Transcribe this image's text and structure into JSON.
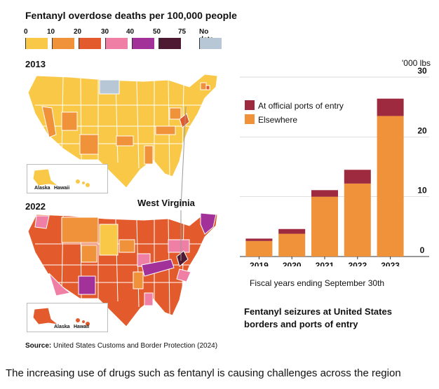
{
  "map": {
    "title": "Fentanyl overdose deaths per 100,000 people",
    "legend_ticks": [
      "0",
      "10",
      "20",
      "30",
      "40",
      "50",
      "75",
      "No data"
    ],
    "legend_colors": [
      "#f9c846",
      "#f0923a",
      "#e35b2d",
      "#ef7fa5",
      "#a23199",
      "#4e1a33",
      "#b8c7d6"
    ],
    "year_top": "2013",
    "year_bottom": "2022",
    "alaska": "Alaska",
    "hawaii": "Hawaii",
    "highlight_label": "West Virginia"
  },
  "source_label": "Source:",
  "source_text": "United States Customs and Border Protection (2024)",
  "caption": "The increasing use of drugs such as fentanyl is causing challenges across the region",
  "chart_data": {
    "type": "bar",
    "stacked": true,
    "title": "Fentanyl seizures at United States borders and ports of entry",
    "xlabel": "Fiscal years ending September 30th",
    "unit_label": "'000 lbs",
    "categories": [
      "2019",
      "2020",
      "2021",
      "2022",
      "2023"
    ],
    "ylim": [
      0,
      30
    ],
    "yticks": [
      "0",
      "10",
      "20",
      "30"
    ],
    "grid": true,
    "legend_position": "top-left",
    "series": [
      {
        "name": "Elsewhere",
        "color": "#f0923a",
        "values": [
          2.6,
          3.8,
          10.0,
          12.2,
          23.5
        ]
      },
      {
        "name": "At official ports of entry",
        "color": "#9e2a3f",
        "values": [
          0.4,
          0.8,
          1.1,
          2.3,
          2.9
        ]
      }
    ]
  }
}
